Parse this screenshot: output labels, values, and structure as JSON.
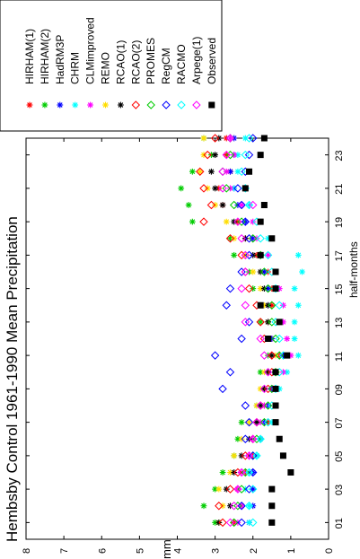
{
  "chart_data": {
    "type": "scatter",
    "title": "Hembsby Control 1961-1990 Mean Precipitation",
    "xlabel": "half-months",
    "ylabel": "mm",
    "xlim": [
      0,
      24
    ],
    "ylim": [
      0,
      8
    ],
    "orientation": "rotated-90",
    "legend_position": "top-right",
    "x_ticks": [
      "01",
      "03",
      "05",
      "07",
      "09",
      "11",
      "13",
      "15",
      "17",
      "19",
      "21",
      "23"
    ],
    "y_ticks": [
      "0",
      "1",
      "2",
      "3",
      "4",
      "5",
      "6",
      "7",
      "8"
    ],
    "x": [
      1,
      2,
      3,
      4,
      5,
      6,
      7,
      8,
      9,
      10,
      11,
      12,
      13,
      14,
      15,
      16,
      17,
      18,
      19,
      20,
      21,
      22,
      23,
      24
    ],
    "series": [
      {
        "name": "HIRHAM(1)",
        "color": "#ff0000",
        "marker": "asterisk",
        "values": [
          2.5,
          2.3,
          2.4,
          2.2,
          2.0,
          1.8,
          1.6,
          1.7,
          1.5,
          1.4,
          1.3,
          1.5,
          1.6,
          1.5,
          1.5,
          1.6,
          1.9,
          2.2,
          2.4,
          2.8,
          2.9,
          2.6,
          2.7,
          2.7
        ]
      },
      {
        "name": "HIRHAM(2)",
        "color": "#00cc00",
        "marker": "asterisk",
        "values": [
          3.0,
          3.3,
          3.0,
          2.8,
          2.5,
          2.4,
          2.3,
          1.9,
          1.7,
          1.8,
          1.6,
          1.6,
          1.8,
          1.8,
          2.0,
          2.1,
          2.5,
          2.6,
          3.6,
          3.7,
          3.9,
          3.6,
          3.1,
          3.3
        ]
      },
      {
        "name": "HadRM3P",
        "color": "#0000ff",
        "marker": "asterisk",
        "values": [
          2.1,
          2.0,
          2.0,
          2.0,
          1.9,
          1.8,
          1.7,
          1.6,
          1.5,
          1.4,
          1.2,
          1.5,
          1.6,
          1.6,
          1.6,
          1.7,
          1.8,
          2.0,
          2.2,
          2.4,
          2.5,
          2.6,
          2.5,
          2.5
        ]
      },
      {
        "name": "CHRM",
        "color": "#00ffff",
        "marker": "asterisk",
        "values": [
          2.1,
          2.1,
          2.2,
          2.1,
          1.9,
          1.8,
          1.5,
          1.4,
          1.3,
          1.1,
          0.8,
          0.9,
          0.9,
          0.8,
          0.9,
          0.7,
          0.8,
          1.6,
          1.8,
          2.1,
          2.5,
          2.4,
          2.4,
          2.2
        ]
      },
      {
        "name": "CLMimproved",
        "color": "#ff00ff",
        "marker": "asterisk",
        "values": [
          2.4,
          2.3,
          2.4,
          2.3,
          2.1,
          2.0,
          1.8,
          1.7,
          1.4,
          1.2,
          1.0,
          1.1,
          1.2,
          1.2,
          1.3,
          1.4,
          1.6,
          1.9,
          2.0,
          2.3,
          2.6,
          2.7,
          2.5,
          2.6
        ]
      },
      {
        "name": "REMO",
        "color": "#ffdd00",
        "marker": "asterisk",
        "values": [
          2.9,
          2.8,
          2.9,
          2.6,
          2.5,
          2.3,
          2.1,
          1.9,
          1.8,
          1.7,
          1.4,
          1.6,
          1.6,
          1.7,
          1.8,
          2.0,
          2.2,
          2.5,
          2.7,
          3.0,
          3.2,
          3.4,
          3.3,
          3.3
        ]
      },
      {
        "name": "RCAO(1)",
        "color": "#000000",
        "marker": "asterisk",
        "values": [
          2.9,
          2.6,
          2.7,
          2.5,
          2.3,
          2.1,
          1.9,
          1.8,
          1.7,
          1.6,
          1.5,
          1.6,
          1.6,
          1.6,
          1.7,
          1.8,
          2.0,
          2.2,
          2.5,
          2.8,
          3.0,
          3.1,
          3.0,
          2.9
        ]
      },
      {
        "name": "RCAO(2)",
        "color": "#ff0000",
        "marker": "diamond",
        "values": [
          2.8,
          2.9,
          2.6,
          2.4,
          2.2,
          2.0,
          1.9,
          1.8,
          1.6,
          1.5,
          1.5,
          1.7,
          1.8,
          1.9,
          2.1,
          2.2,
          2.3,
          2.6,
          3.3,
          3.1,
          3.3,
          3.4,
          3.2,
          3.0
        ]
      },
      {
        "name": "PROMES",
        "color": "#00cc00",
        "marker": "diamond",
        "values": [
          2.5,
          2.4,
          2.3,
          2.2,
          2.0,
          1.9,
          1.7,
          1.6,
          1.5,
          1.4,
          1.3,
          1.4,
          1.5,
          1.5,
          1.6,
          1.7,
          1.8,
          2.0,
          2.3,
          2.5,
          2.7,
          2.8,
          2.6,
          2.6
        ]
      },
      {
        "name": "RegCM",
        "color": "#0000ff",
        "marker": "diamond",
        "values": [
          2.3,
          2.3,
          2.1,
          2.0,
          2.0,
          2.2,
          2.1,
          2.2,
          2.8,
          2.6,
          3.0,
          2.3,
          2.1,
          2.7,
          2.6,
          2.3,
          2.1,
          2.1,
          2.2,
          2.3,
          2.4,
          2.2,
          2.1,
          2.0
        ]
      },
      {
        "name": "RACMO",
        "color": "#00ffff",
        "marker": "diamond",
        "values": [
          2.0,
          2.1,
          2.0,
          2.1,
          1.9,
          1.8,
          1.6,
          1.5,
          1.4,
          1.3,
          1.2,
          1.3,
          1.4,
          1.3,
          1.4,
          1.5,
          1.6,
          1.8,
          1.9,
          2.1,
          2.2,
          2.3,
          2.2,
          2.1
        ]
      },
      {
        "name": "Arpege(1)",
        "color": "#ff00ff",
        "marker": "diamond",
        "values": [
          2.6,
          2.5,
          2.4,
          2.3,
          2.1,
          2.0,
          1.9,
          1.8,
          1.7,
          1.6,
          1.7,
          1.8,
          2.2,
          2.2,
          2.3,
          2.2,
          2.2,
          2.3,
          2.4,
          2.0,
          2.8,
          2.8,
          2.7,
          2.6
        ]
      },
      {
        "name": "Observed",
        "color": "#000000",
        "marker": "square",
        "values": [
          1.5,
          1.5,
          1.5,
          1.0,
          1.2,
          1.3,
          1.4,
          1.4,
          1.4,
          1.4,
          1.1,
          1.6,
          1.3,
          1.8,
          1.4,
          1.4,
          1.8,
          1.5,
          1.8,
          1.7,
          2.2,
          2.1,
          1.8,
          1.7
        ]
      }
    ]
  }
}
